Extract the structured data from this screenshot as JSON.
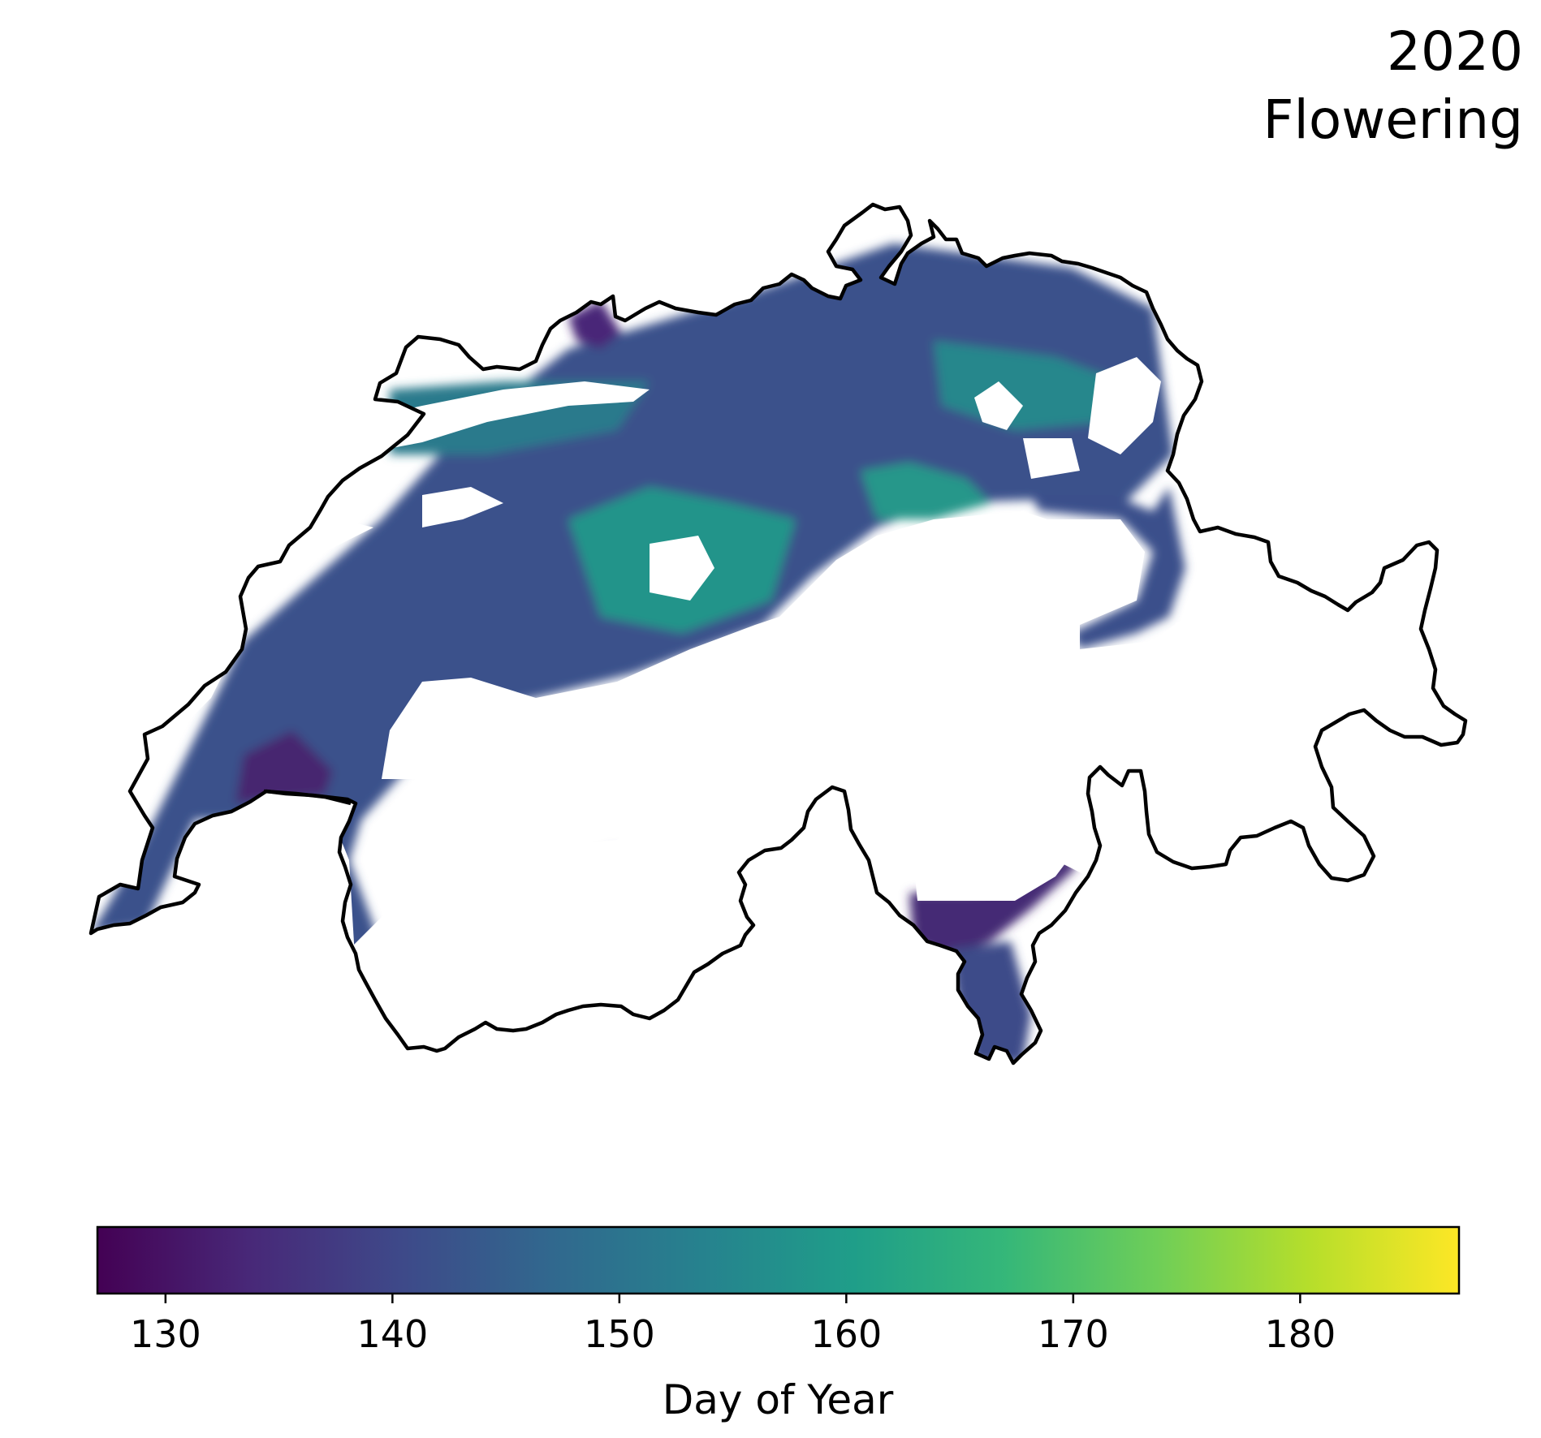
{
  "title": {
    "year": "2020",
    "phase": "Flowering"
  },
  "colorbar": {
    "label": "Day of Year",
    "min": 127,
    "max": 187,
    "ticks": [
      130,
      140,
      150,
      160,
      170,
      180
    ],
    "colormap": [
      "#440154",
      "#482878",
      "#3e4989",
      "#31688e",
      "#26828e",
      "#1f9e89",
      "#35b779",
      "#6ece58",
      "#b5de2b",
      "#fde725"
    ]
  },
  "map": {
    "region": "Switzerland",
    "outline_color": "#000000",
    "no_data_color": "#ffffff"
  }
}
